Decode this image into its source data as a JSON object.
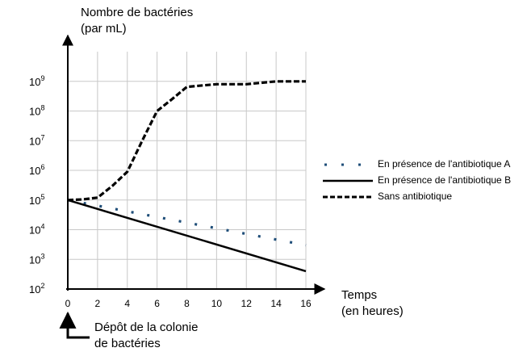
{
  "chart_data": {
    "type": "line",
    "ylabel_line1": "Nombre de bactéries",
    "ylabel_line2": "(par mL)",
    "xlabel_line1": "Temps",
    "xlabel_line2": "(en heures)",
    "annotation_line1": "Dépôt de la colonie",
    "annotation_line2": "de bactéries",
    "x_ticks": [
      0,
      2,
      4,
      6,
      8,
      10,
      12,
      14,
      16
    ],
    "y_ticks": [
      2,
      3,
      4,
      5,
      6,
      7,
      8,
      9
    ],
    "y_tick_base": "10",
    "y_scale": "log",
    "xlim": [
      0,
      16
    ],
    "ylim": [
      100,
      10000000000
    ],
    "grid": true,
    "legend_position": "right",
    "series": [
      {
        "name": "En présence de l'antibiotique A",
        "style": "dotted",
        "color": "#1f4e79",
        "x": [
          0,
          16
        ],
        "y": [
          100000,
          3000
        ]
      },
      {
        "name": "En présence de l'antibiotique B",
        "style": "solid",
        "color": "#000000",
        "x": [
          0,
          16
        ],
        "y": [
          100000,
          400
        ]
      },
      {
        "name": "Sans antibiotique",
        "style": "dashed",
        "color": "#000000",
        "x": [
          0,
          1,
          2,
          3,
          4,
          5,
          6,
          7,
          8,
          10,
          12,
          14,
          16
        ],
        "y": [
          100000,
          105000,
          120000,
          300000,
          900000,
          10000000,
          100000000,
          250000000,
          650000000,
          800000000,
          800000000,
          1000000000,
          1000000000
        ]
      }
    ]
  }
}
